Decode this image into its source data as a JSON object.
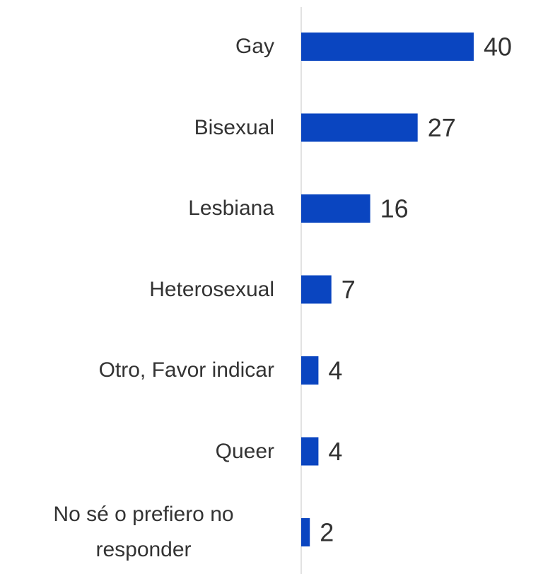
{
  "chart_data": {
    "type": "bar",
    "orientation": "horizontal",
    "categories": [
      "Gay",
      "Bisexual",
      "Lesbiana",
      "Heterosexual",
      "Otro, Favor indicar",
      "Queer",
      "No sé o prefiero no responder"
    ],
    "values": [
      40,
      27,
      16,
      7,
      4,
      4,
      2
    ],
    "color": "#0a45c0"
  }
}
